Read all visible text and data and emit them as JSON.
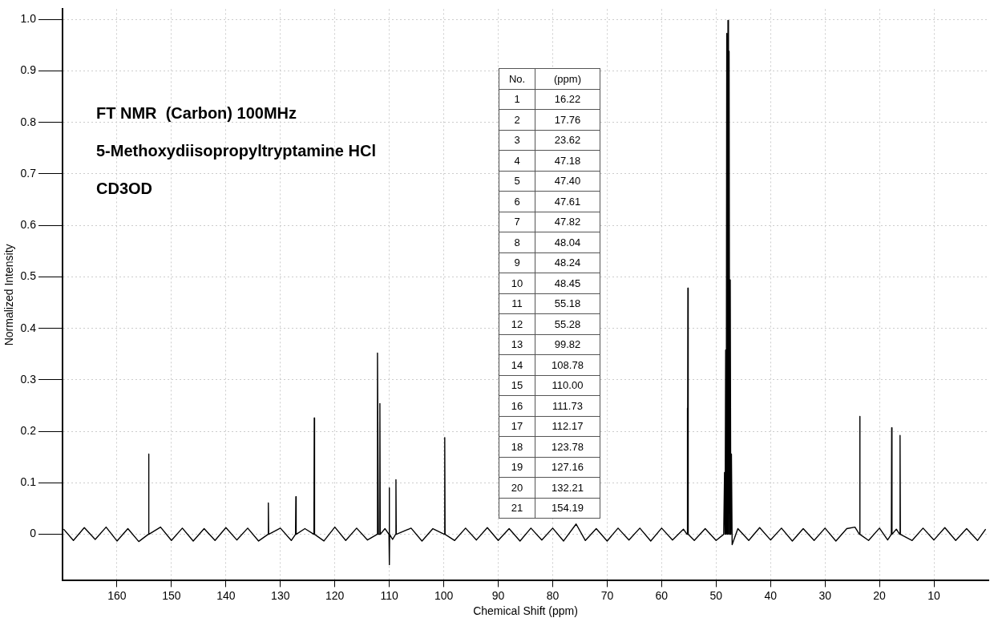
{
  "chart_data": [
    {
      "type": "line",
      "title": "FT NMR  (Carbon) 100MHz",
      "subtitle": "5-Methoxydiisopropyltryptamine HCl",
      "annotations": [
        "CD3OD",
        "No.",
        "(ppm)",
        "1",
        "16.22",
        "2",
        "17.76",
        "3",
        "23.62",
        "4",
        "47.18",
        "5",
        "47.40",
        "6",
        "47.61",
        "7",
        "47.82",
        "8",
        "48.04",
        "9",
        "48.24",
        "10",
        "48.45",
        "11",
        "55.18",
        "12",
        "55.28",
        "13",
        "99.82",
        "14",
        "108.78",
        "15",
        "110.00",
        "16",
        "111.73",
        "17",
        "112.17",
        "18",
        "123.78",
        "19",
        "127.16",
        "20",
        "132.21",
        "21",
        "154.19"
      ],
      "xlabel": "Chemical Shift (ppm)",
      "ylabel": "Normalized Intensity",
      "xlim": [
        170,
        0
      ],
      "xticks": [
        160,
        150,
        140,
        130,
        120,
        110,
        100,
        90,
        80,
        70,
        60,
        50,
        40,
        30,
        20,
        10
      ],
      "ylim": [
        -0.09,
        1.02
      ],
      "yticks": [
        0,
        0.1,
        0.2,
        0.3,
        0.4,
        0.5,
        0.6,
        0.7,
        0.8,
        0.9,
        {
          "value": 1,
          "label": "1.0"
        }
      ],
      "grid": true,
      "series": [
        {
          "color": "#000000",
          "x": [
            169.8,
            168,
            166,
            164,
            162,
            160,
            158,
            156,
            154.25,
            154.19,
            154.13,
            152,
            150,
            148,
            146,
            144,
            142,
            140,
            138,
            136,
            134,
            132.27,
            132.21,
            132.15,
            130,
            128,
            127.22,
            127.16,
            127.1,
            125.5,
            123.84,
            123.78,
            123.72,
            122,
            120,
            118,
            116,
            114,
            112.23,
            112.17,
            112.0,
            111.8,
            111.73,
            111.66,
            110.8,
            110.06,
            110.0,
            109.98,
            109.94,
            109.4,
            108.84,
            108.78,
            108.72,
            106,
            104,
            102,
            99.88,
            99.82,
            99.76,
            98,
            96,
            94,
            92,
            90,
            88,
            86,
            84,
            82,
            80,
            78,
            75.7,
            74,
            72,
            70,
            68,
            66,
            64,
            62,
            60,
            58,
            56,
            55.33,
            55.28,
            55.23,
            55.18,
            55.12,
            54,
            52,
            50,
            48.6,
            48.45,
            48.35,
            48.24,
            48.14,
            48.04,
            47.93,
            47.82,
            47.72,
            47.61,
            47.5,
            47.4,
            47.29,
            47.18,
            47.05,
            46,
            44,
            42,
            40,
            38,
            36,
            34,
            32,
            30,
            28,
            26,
            24.5,
            23.68,
            23.62,
            23.56,
            22,
            20,
            18.5,
            17.82,
            17.76,
            17.7,
            16.9,
            16.28,
            16.22,
            16.16,
            14,
            12,
            10,
            8,
            6,
            4,
            2,
            0.5
          ],
          "values": [
            0.01,
            -0.012,
            0.013,
            -0.01,
            0.014,
            -0.013,
            0.011,
            -0.014,
            0,
            0.156,
            0,
            0.014,
            -0.012,
            0.012,
            -0.013,
            0.011,
            -0.012,
            0.013,
            -0.011,
            0.012,
            -0.013,
            0,
            0.061,
            0,
            0.012,
            -0.012,
            0,
            0.073,
            0,
            0.011,
            0,
            0.226,
            0,
            -0.013,
            0.014,
            -0.012,
            0.012,
            -0.011,
            0,
            0.352,
            0,
            0,
            0.254,
            0,
            0.011,
            0,
            0.09,
            -0.059,
            0,
            -0.01,
            0,
            0.106,
            0,
            0.012,
            -0.013,
            0.011,
            0,
            0.188,
            0,
            -0.012,
            0.012,
            -0.011,
            0.013,
            -0.012,
            0.011,
            -0.013,
            0.012,
            -0.011,
            0.012,
            -0.013,
            0.02,
            -0.012,
            0.011,
            -0.013,
            0.012,
            -0.011,
            0.012,
            -0.013,
            0.012,
            -0.011,
            0.01,
            0,
            0.245,
            0,
            0.478,
            0,
            -0.012,
            0.011,
            -0.012,
            0,
            0.12,
            0,
            0.358,
            0,
            0.973,
            0,
            0.998,
            0,
            0.938,
            0,
            0.494,
            0,
            0.156,
            -0.02,
            0.011,
            -0.012,
            0.013,
            -0.011,
            0.012,
            -0.013,
            0.011,
            -0.012,
            0.012,
            -0.013,
            0.011,
            0.014,
            0,
            0.229,
            0,
            -0.012,
            0.012,
            -0.011,
            0,
            0.207,
            0,
            0.01,
            0,
            0.192,
            0,
            -0.012,
            0.012,
            -0.011,
            0.013,
            -0.012,
            0.011,
            -0.012,
            0.01
          ]
        }
      ]
    }
  ]
}
